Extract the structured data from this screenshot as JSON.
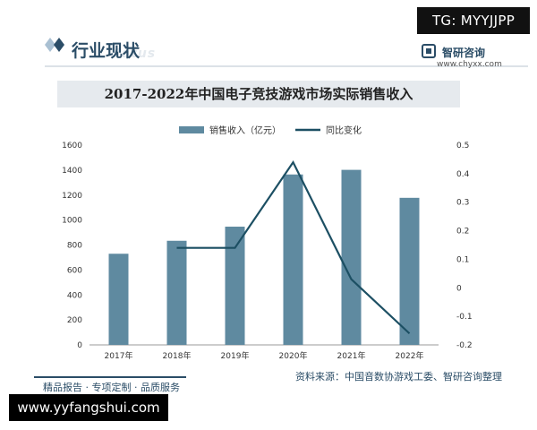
{
  "badges": {
    "tg": "TG: MYYJJPP",
    "site": "www.yyfangshui.com"
  },
  "header": {
    "title": "行业现状",
    "watermark": "tatus",
    "brand_name": "智研咨询",
    "brand_url": "www.chyxx.com"
  },
  "chart_data": {
    "type": "bar",
    "title": "2017-2022年中国电子竞技游戏市场实际销售收入",
    "categories": [
      "2017年",
      "2018年",
      "2019年",
      "2020年",
      "2021年",
      "2022年"
    ],
    "series": [
      {
        "name": "销售收入（亿元）",
        "type": "bar",
        "axis": "left",
        "values": [
          730,
          834,
          947,
          1365,
          1402,
          1178
        ]
      },
      {
        "name": "同比变化",
        "type": "line",
        "axis": "right",
        "values": [
          null,
          0.14,
          0.14,
          0.44,
          0.03,
          -0.16
        ]
      }
    ],
    "y_left": {
      "min": 0,
      "max": 1600,
      "ticks": [
        "0",
        "200",
        "400",
        "600",
        "800",
        "1000",
        "1200",
        "1400",
        "1600"
      ]
    },
    "y_right": {
      "min": -0.2,
      "max": 0.5,
      "ticks": [
        "-0.2",
        "-0.1",
        "0",
        "0.1",
        "0.2",
        "0.3",
        "0.4",
        "0.5"
      ]
    },
    "legend_position": "top-center",
    "grid": false
  },
  "source": "资料来源：中国音数协游戏工委、智研咨询整理",
  "footer": "精品报告 · 专项定制 · 品质服务",
  "colors": {
    "bar": "#5f8aa0",
    "line": "#1c4f63",
    "brand": "#2b4d67"
  },
  "icons": {
    "header": "diamond-icon",
    "brand": "brand-logo-icon"
  }
}
